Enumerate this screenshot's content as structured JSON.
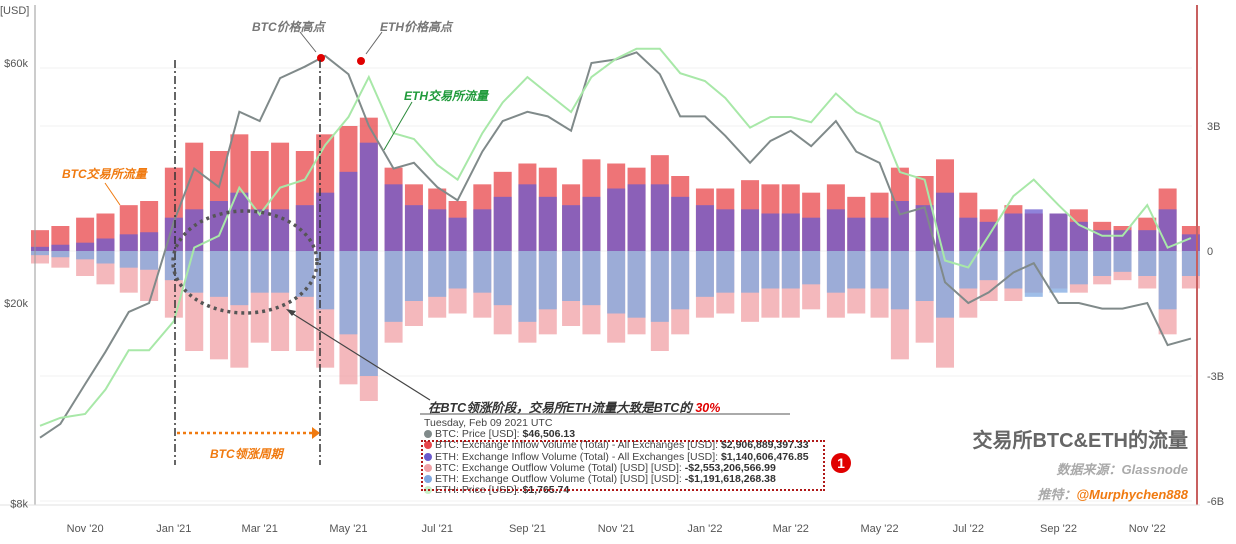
{
  "chart_data": {
    "type": "bar",
    "title": "交易所BTC&ETH的流量",
    "source": "数据来源：Glassnode",
    "twitter_label": "推特：",
    "twitter_handle": "@Murphychen888",
    "left_axis": {
      "label": "[USD]",
      "scale": "log",
      "ticks": [
        "$8k",
        "$20k",
        "$60k"
      ],
      "tick_values": [
        8000,
        20000,
        60000
      ]
    },
    "right_axis": {
      "ticks": [
        "-6B",
        "-3B",
        "0",
        "3B"
      ],
      "tick_values": [
        -6,
        -3,
        0,
        3
      ],
      "unit": "B USD"
    },
    "x_ticks": [
      "Nov '20",
      "Jan '21",
      "Mar '21",
      "May '21",
      "Jul '21",
      "Sep '21",
      "Nov '21",
      "Jan '22",
      "Mar '22",
      "May '22",
      "Jul '22",
      "Sep '22",
      "Nov '22"
    ],
    "x_tick_dates": [
      "2020-11-01",
      "2021-01-01",
      "2021-03-01",
      "2021-05-01",
      "2021-07-01",
      "2021-09-01",
      "2021-11-01",
      "2022-01-01",
      "2022-03-01",
      "2022-05-01",
      "2022-07-01",
      "2022-09-01",
      "2022-11-01"
    ],
    "grid": true,
    "x": [
      "2020-10-01",
      "2020-10-15",
      "2020-11-01",
      "2020-11-15",
      "2020-12-01",
      "2020-12-15",
      "2021-01-01",
      "2021-01-15",
      "2021-02-01",
      "2021-02-15",
      "2021-03-01",
      "2021-03-15",
      "2021-04-01",
      "2021-04-15",
      "2021-05-01",
      "2021-05-15",
      "2021-06-01",
      "2021-06-15",
      "2021-07-01",
      "2021-07-15",
      "2021-08-01",
      "2021-08-15",
      "2021-09-01",
      "2021-09-15",
      "2021-10-01",
      "2021-10-15",
      "2021-11-01",
      "2021-11-15",
      "2021-12-01",
      "2021-12-15",
      "2022-01-01",
      "2022-01-15",
      "2022-02-01",
      "2022-02-15",
      "2022-03-01",
      "2022-03-15",
      "2022-04-01",
      "2022-04-15",
      "2022-05-01",
      "2022-05-15",
      "2022-06-01",
      "2022-06-15",
      "2022-07-01",
      "2022-07-15",
      "2022-08-01",
      "2022-08-15",
      "2022-09-01",
      "2022-09-15",
      "2022-10-01",
      "2022-10-15",
      "2022-11-01",
      "2022-11-15",
      "2022-12-01"
    ],
    "series": [
      {
        "name": "BTC: Exchange Inflow Volume (Total) - All Exchanges [USD]",
        "axis": "right",
        "color": "#e8454a",
        "values": [
          0.5,
          0.6,
          0.8,
          0.9,
          1.1,
          1.2,
          2.0,
          2.6,
          2.4,
          2.8,
          2.4,
          2.6,
          2.4,
          2.8,
          3.0,
          3.2,
          2.0,
          1.6,
          1.5,
          1.2,
          1.6,
          1.9,
          2.1,
          2.0,
          1.6,
          2.2,
          2.1,
          2.0,
          2.3,
          1.8,
          1.5,
          1.5,
          1.7,
          1.6,
          1.6,
          1.4,
          1.6,
          1.3,
          1.4,
          2.0,
          1.8,
          2.2,
          1.4,
          1.0,
          1.1,
          0.9,
          0.9,
          1.0,
          0.7,
          0.6,
          0.8,
          1.5,
          0.6
        ]
      },
      {
        "name": "ETH: Exchange Inflow Volume (Total) - All Exchanges [USD]",
        "axis": "right",
        "color": "#6a5acd",
        "values": [
          0.1,
          0.15,
          0.2,
          0.3,
          0.4,
          0.45,
          0.8,
          1.0,
          1.2,
          1.4,
          1.0,
          1.0,
          1.1,
          1.4,
          1.9,
          2.6,
          1.6,
          1.1,
          1.0,
          0.8,
          1.0,
          1.3,
          1.6,
          1.3,
          1.1,
          1.3,
          1.5,
          1.6,
          1.6,
          1.3,
          1.1,
          1.0,
          1.0,
          0.9,
          0.9,
          0.8,
          1.0,
          0.8,
          0.8,
          1.2,
          1.1,
          1.4,
          0.8,
          0.7,
          0.9,
          1.0,
          0.9,
          0.7,
          0.5,
          0.5,
          0.5,
          1.0,
          0.4
        ]
      },
      {
        "name": "BTC: Exchange Outflow Volume (Total) [USD] [USD]",
        "axis": "right",
        "color": "#f0a0a6",
        "values": [
          -0.3,
          -0.4,
          -0.6,
          -0.8,
          -1.0,
          -1.2,
          -1.6,
          -2.4,
          -2.6,
          -2.8,
          -2.2,
          -2.4,
          -2.4,
          -2.8,
          -3.2,
          -3.6,
          -2.2,
          -1.8,
          -1.6,
          -1.5,
          -1.6,
          -2.0,
          -2.2,
          -2.0,
          -1.8,
          -2.0,
          -2.2,
          -2.0,
          -2.4,
          -2.0,
          -1.6,
          -1.5,
          -1.7,
          -1.6,
          -1.6,
          -1.4,
          -1.6,
          -1.5,
          -1.6,
          -2.6,
          -2.2,
          -2.8,
          -1.6,
          -1.2,
          -1.2,
          -1.0,
          -0.9,
          -1.0,
          -0.8,
          -0.7,
          -0.9,
          -2.0,
          -0.9
        ]
      },
      {
        "name": "ETH: Exchange Outflow Volume (Total) [USD] [USD]",
        "axis": "right",
        "color": "#7fa8e0",
        "values": [
          -0.1,
          -0.15,
          -0.2,
          -0.3,
          -0.4,
          -0.45,
          -0.7,
          -1.0,
          -1.1,
          -1.3,
          -1.0,
          -1.0,
          -1.1,
          -1.4,
          -2.0,
          -3.0,
          -1.7,
          -1.2,
          -1.1,
          -0.9,
          -1.0,
          -1.3,
          -1.7,
          -1.4,
          -1.2,
          -1.3,
          -1.5,
          -1.6,
          -1.7,
          -1.4,
          -1.1,
          -1.0,
          -1.0,
          -0.9,
          -0.9,
          -0.8,
          -1.0,
          -0.9,
          -0.9,
          -1.4,
          -1.2,
          -1.6,
          -0.9,
          -0.7,
          -0.9,
          -1.1,
          -1.0,
          -0.8,
          -0.6,
          -0.5,
          -0.6,
          -1.4,
          -0.6
        ]
      },
      {
        "name": "BTC: Price [USD]",
        "axis": "left",
        "type": "line",
        "color": "#808a8a",
        "values": [
          10800,
          11500,
          13800,
          16000,
          19200,
          20000,
          29000,
          37000,
          34000,
          48000,
          46000,
          56000,
          59000,
          62000,
          57000,
          45000,
          37000,
          38000,
          34000,
          32000,
          40000,
          46000,
          48000,
          47000,
          44000,
          60000,
          61000,
          63000,
          57000,
          47000,
          47000,
          43000,
          38000,
          42000,
          44000,
          41000,
          46000,
          40000,
          38000,
          30000,
          31000,
          22000,
          20000,
          21000,
          23000,
          24000,
          20000,
          20000,
          19500,
          19500,
          20000,
          16500,
          17000
        ]
      },
      {
        "name": "ETH: Price [USD]",
        "axis": "hidden-log",
        "type": "line",
        "color": "#a8e8a8",
        "values": [
          360,
          380,
          390,
          460,
          600,
          600,
          730,
          1200,
          1300,
          1800,
          1500,
          1800,
          1900,
          2400,
          2900,
          3800,
          2600,
          2500,
          2100,
          1900,
          2600,
          3200,
          3800,
          3400,
          3000,
          3800,
          4300,
          4600,
          4600,
          3900,
          3700,
          3300,
          2700,
          2900,
          2900,
          2800,
          3400,
          3000,
          2800,
          2000,
          1900,
          1100,
          1050,
          1300,
          1700,
          1900,
          1600,
          1400,
          1300,
          1300,
          1600,
          1200,
          1280
        ]
      }
    ],
    "highlight_points": [
      {
        "label": "BTC价格高点",
        "date": "2021-04-14"
      },
      {
        "label": "ETH价格高点",
        "date": "2021-05-12"
      }
    ],
    "annotations": {
      "btc_peak": "BTC价格高点",
      "eth_peak": "ETH价格高点",
      "eth_flow": "ETH交易所流量",
      "btc_flow": "BTC交易所流量",
      "btc_lead_period": "BTC领涨周期",
      "note_prefix": "在BTC领涨阶段，交易所ETH流量大致是BTC的 ",
      "note_highlight": "30%",
      "badge": "1"
    },
    "tooltip": {
      "date": "Tuesday, Feb 09 2021 UTC",
      "rows": [
        {
          "label": "BTC: Price [USD]: ",
          "value": "$46,506.13",
          "color": "#808a8a"
        },
        {
          "label": "BTC: Exchange Inflow Volume (Total) - All Exchanges [USD]: ",
          "value": "$2,906,889,397.33",
          "color": "#e8454a"
        },
        {
          "label": "ETH: Exchange Inflow Volume (Total) - All Exchanges [USD]: ",
          "value": "$1,140,606,476.85",
          "color": "#6a5acd"
        },
        {
          "label": "BTC: Exchange Outflow Volume (Total) [USD] [USD]: ",
          "value": "-$2,553,206,566.99",
          "color": "#f0a0a6"
        },
        {
          "label": "ETH: Exchange Outflow Volume (Total) [USD] [USD]: ",
          "value": "-$1,191,618,268.38",
          "color": "#7fa8e0"
        },
        {
          "label": "ETH: Price [USD]: ",
          "value": "$1,765.74",
          "color": "#c8f0c8"
        }
      ]
    }
  }
}
